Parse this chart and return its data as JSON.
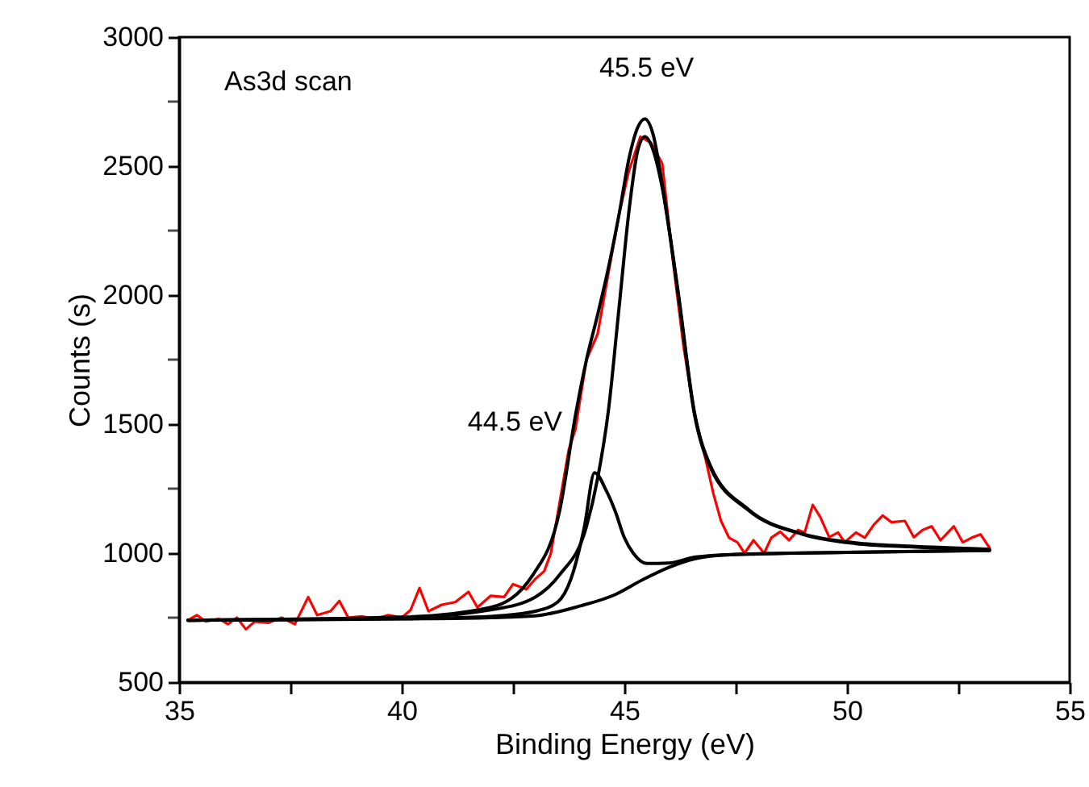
{
  "chart_data": {
    "type": "line",
    "xlabel": "Binding Energy (eV)",
    "ylabel": "Counts (s)",
    "xlim": [
      35,
      55
    ],
    "ylim": [
      500,
      3000
    ],
    "xticks": [
      35,
      {
        "value": 37.5,
        "label": null
      },
      40,
      {
        "value": 42.5,
        "label": null
      },
      45,
      {
        "value": 47.5,
        "label": null
      },
      50,
      {
        "value": 52.5,
        "label": null
      },
      55
    ],
    "yticks": [
      500,
      {
        "value": 750,
        "label": null
      },
      1000,
      {
        "value": 1250,
        "label": null
      },
      1500,
      {
        "value": 1750,
        "label": null
      },
      2000,
      {
        "value": 2250,
        "label": null
      },
      2500,
      {
        "value": 2750,
        "label": null
      },
      3000
    ],
    "grid": false,
    "annotations": [
      "As3d scan",
      {
        "text": "45.5 eV",
        "x": 45.5,
        "y": 2683
      },
      {
        "text": "44.5 eV",
        "x": 44.33,
        "y": 1312
      }
    ],
    "series": [
      {
        "color": "#ff0000",
        "x": [
          35.2,
          35.4,
          35.6,
          35.9,
          36.1,
          36.3,
          36.5,
          36.7,
          37.0,
          37.3,
          37.6,
          37.9,
          38.1,
          38.4,
          38.6,
          38.8,
          39.1,
          39.4,
          39.7,
          40.0,
          40.2,
          40.4,
          40.6,
          40.9,
          41.2,
          41.5,
          41.7,
          42.0,
          42.3,
          42.5,
          42.8,
          43.0,
          43.2,
          43.35,
          43.55,
          43.75,
          43.9,
          44.15,
          44.4,
          44.64,
          44.88,
          45.1,
          45.36,
          45.6,
          45.85,
          46.09,
          46.33,
          46.57,
          46.81,
          47.0,
          47.17,
          47.35,
          47.54,
          47.7,
          47.9,
          48.14,
          48.3,
          48.5,
          48.7,
          48.9,
          49.05,
          49.23,
          49.4,
          49.6,
          49.8,
          49.95,
          50.2,
          50.4,
          50.6,
          50.8,
          51.0,
          51.3,
          51.5,
          51.7,
          51.9,
          52.1,
          52.4,
          52.6,
          52.8,
          53.0,
          53.2
        ],
        "values": [
          740,
          760,
          735,
          745,
          725,
          750,
          705,
          735,
          730,
          750,
          725,
          830,
          760,
          775,
          815,
          750,
          755,
          745,
          760,
          750,
          780,
          865,
          775,
          800,
          810,
          850,
          790,
          835,
          830,
          880,
          860,
          900,
          930,
          1000,
          1200,
          1400,
          1480,
          1750,
          1850,
          2083,
          2312,
          2480,
          2614,
          2590,
          2510,
          2135,
          1800,
          1542,
          1375,
          1230,
          1125,
          1060,
          1042,
          1000,
          1050,
          1000,
          1060,
          1083,
          1050,
          1090,
          1080,
          1187,
          1140,
          1062,
          1080,
          1042,
          1080,
          1060,
          1110,
          1146,
          1120,
          1125,
          1062,
          1090,
          1104,
          1050,
          1104,
          1042,
          1060,
          1073,
          1021
        ]
      },
      {
        "color": "#000000",
        "x": [
          35.2,
          40,
          42,
          42.95,
          43.55,
          43.91,
          44.15,
          44.39,
          44.64,
          44.88,
          45.12,
          45.3,
          45.46,
          45.65,
          45.85,
          46.21,
          46.57,
          46.93,
          47.78,
          49,
          50.2,
          51.4,
          53.2
        ],
        "values": [
          740,
          752,
          790,
          917,
          1167,
          1542,
          1750,
          1917,
          2104,
          2312,
          2542,
          2650,
          2683,
          2620,
          2430,
          2010,
          1550,
          1340,
          1170,
          1075,
          1040,
          1027,
          1015
        ]
      },
      {
        "color": "#000000",
        "x": [
          35.2,
          40,
          42,
          43,
          43.55,
          44.15,
          44.4,
          44.64,
          44.88,
          45.12,
          45.3,
          45.46,
          45.65,
          45.85,
          46.21,
          46.57,
          46.93,
          47.78,
          49,
          50.2,
          51.4,
          53.2
        ],
        "values": [
          740,
          750,
          780,
          830,
          917,
          1104,
          1290,
          1550,
          1950,
          2350,
          2560,
          2614,
          2560,
          2417,
          2000,
          1542,
          1333,
          1167,
          1073,
          1037,
          1025,
          1012
        ]
      },
      {
        "color": "#000000",
        "x": [
          35.2,
          40,
          42,
          43,
          43.5,
          43.8,
          44.1,
          44.33,
          44.6,
          44.8,
          45.0,
          45.2,
          45.5,
          46,
          46.6,
          47.5,
          50,
          53.2
        ],
        "values": [
          740,
          746,
          755,
          775,
          810,
          900,
          1100,
          1312,
          1240,
          1160,
          1060,
          1000,
          960,
          962,
          985,
          995,
          1003,
          1011
        ]
      },
      {
        "color": "#000000",
        "x": [
          35.2,
          38,
          40,
          42,
          43,
          44,
          44.8,
          45.4,
          46,
          46.6,
          47.2,
          48,
          50,
          53.2
        ],
        "values": [
          740,
          742,
          745,
          750,
          757,
          795,
          840,
          896,
          945,
          979,
          992,
          997,
          1003,
          1010
        ]
      }
    ]
  }
}
